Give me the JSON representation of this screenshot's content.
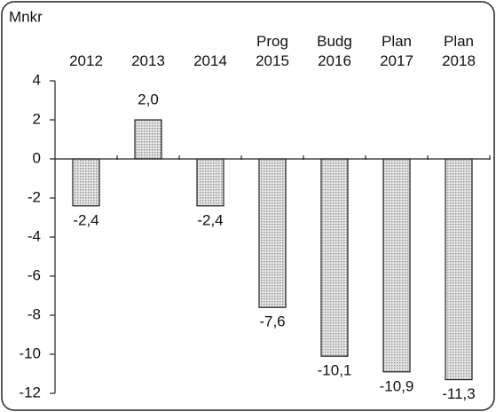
{
  "chart_data": {
    "type": "bar",
    "y_label": "Mnkr",
    "categories": [
      "2012",
      "2013",
      "2014",
      "Prog 2015",
      "Budg 2016",
      "Plan 2017",
      "Plan 2018"
    ],
    "values": [
      -2.4,
      2.0,
      -2.4,
      -7.6,
      -10.1,
      -10.9,
      -11.3
    ],
    "value_labels": [
      "-2,4",
      "2,0",
      "-2,4",
      "-7,6",
      "-10,1",
      "-10,9",
      "-11,3"
    ],
    "color": "#c8c8c8",
    "ylim": [
      -12,
      4
    ],
    "yticks": [
      -12,
      -10,
      -8,
      -6,
      -4,
      -2,
      0,
      2,
      4
    ],
    "grid": false
  }
}
